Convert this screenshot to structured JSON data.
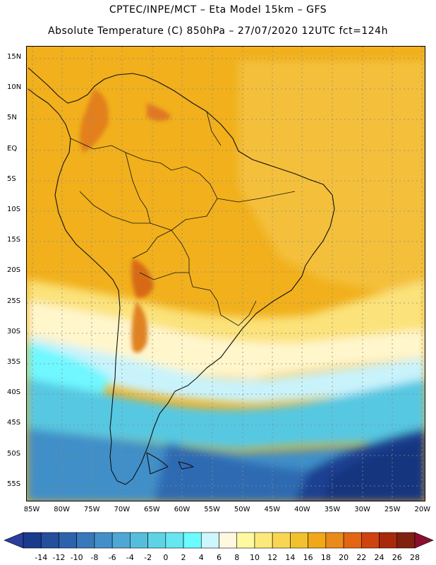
{
  "title_line1": "CPTEC/INPE/MCT –  Eta Model 15km – GFS",
  "title_line2": "Absolute Temperature (C) 850hPa – 27/07/2020 12UTC fct=124h",
  "lat_labels": [
    "15N",
    "10N",
    "5N",
    "EQ",
    "5S",
    "10S",
    "15S",
    "20S",
    "25S",
    "30S",
    "35S",
    "40S",
    "45S",
    "50S",
    "55S"
  ],
  "lon_labels": [
    "85W",
    "80W",
    "75W",
    "70W",
    "65W",
    "60W",
    "55W",
    "50W",
    "45W",
    "40W",
    "35W",
    "30W",
    "25W",
    "20W"
  ],
  "colorbar": {
    "labels": [
      "-14",
      "-12",
      "-10",
      "-8",
      "-6",
      "-4",
      "-2",
      "0",
      "2",
      "4",
      "6",
      "8",
      "10",
      "12",
      "14",
      "16",
      "18",
      "20",
      "22",
      "24",
      "26",
      "28"
    ],
    "colors": [
      "#1a3a8c",
      "#234f9c",
      "#2d63ad",
      "#3878bc",
      "#4390c8",
      "#4ea7d4",
      "#55bedd",
      "#5ed3e6",
      "#66e6ef",
      "#6cfbff",
      "#cdf6ff",
      "#fff8e1",
      "#fffaa0",
      "#fbe97a",
      "#f8d654",
      "#f2c12e",
      "#f0a818",
      "#ea8a1a",
      "#e26614",
      "#cf4310",
      "#a82a0a",
      "#822010"
    ],
    "under_color": "#2a3f9c",
    "over_color": "#8a1030"
  }
}
